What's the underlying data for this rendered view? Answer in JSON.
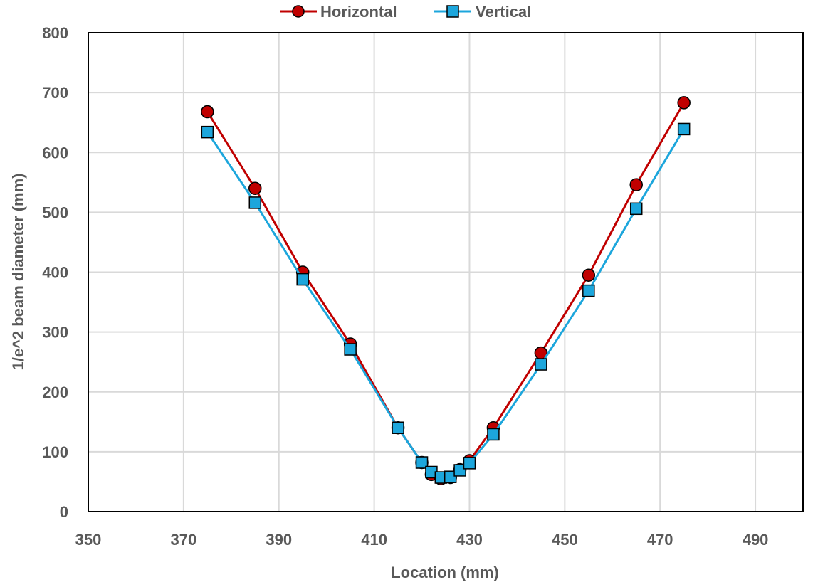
{
  "chart_data": {
    "type": "line",
    "xlabel": "Location (mm)",
    "ylabel": "1/e^2 beam diameter (mm)",
    "xlim": [
      350,
      500
    ],
    "ylim": [
      0,
      800
    ],
    "xticks": [
      350,
      370,
      390,
      410,
      430,
      450,
      470,
      490
    ],
    "yticks": [
      0,
      100,
      200,
      300,
      400,
      500,
      600,
      700,
      800
    ],
    "grid": true,
    "legend_position": "top",
    "series": [
      {
        "name": "Horizontal",
        "color": "#c00000",
        "marker": "circle",
        "x": [
          375,
          385,
          395,
          405,
          415,
          420,
          422,
          424,
          426,
          428,
          430,
          435,
          445,
          455,
          465,
          475
        ],
        "y": [
          668,
          540,
          400,
          280,
          140,
          82,
          62,
          55,
          57,
          70,
          85,
          140,
          265,
          395,
          546,
          683
        ]
      },
      {
        "name": "Vertical",
        "color": "#1ca6dc",
        "marker": "square",
        "x": [
          375,
          385,
          395,
          405,
          415,
          420,
          422,
          424,
          426,
          428,
          430,
          435,
          445,
          455,
          465,
          475
        ],
        "y": [
          634,
          516,
          388,
          271,
          140,
          82,
          66,
          57,
          58,
          69,
          81,
          129,
          246,
          369,
          506,
          639
        ]
      }
    ]
  }
}
